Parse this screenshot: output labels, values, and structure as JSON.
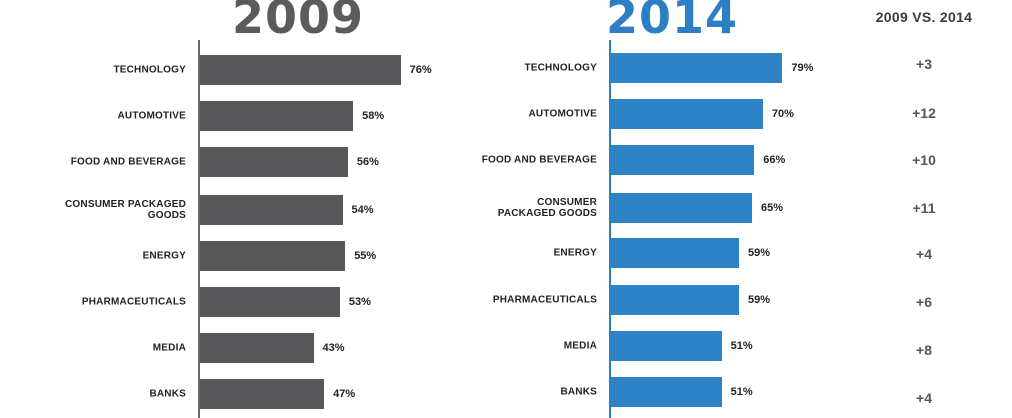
{
  "chart_data": {
    "type": "bar",
    "orientation": "horizontal",
    "categories": [
      "TECHNOLOGY",
      "AUTOMOTIVE",
      "FOOD AND BEVERAGE",
      "CONSUMER PACKAGED GOODS",
      "ENERGY",
      "PHARMACEUTICALS",
      "MEDIA",
      "BANKS"
    ],
    "series": [
      {
        "name": "2009",
        "color": "#58585a",
        "values": [
          76,
          58,
          56,
          54,
          55,
          53,
          43,
          47
        ],
        "labels": [
          "76%",
          "58%",
          "56%",
          "54%",
          "55%",
          "53%",
          "43%",
          "47%"
        ],
        "category_labels": [
          "TECHNOLOGY",
          "AUTOMOTIVE",
          "FOOD AND BEVERAGE",
          "CONSUMER PACKAGED\nGOODS",
          "ENERGY",
          "PHARMACEUTICALS",
          "MEDIA",
          "BANKS"
        ]
      },
      {
        "name": "2014",
        "color": "#2e82c6",
        "values": [
          79,
          70,
          66,
          65,
          59,
          59,
          51,
          51
        ],
        "labels": [
          "79%",
          "70%",
          "66%",
          "65%",
          "59%",
          "59%",
          "51%",
          "51%"
        ],
        "category_labels": [
          "TECHNOLOGY",
          "AUTOMOTIVE",
          "FOOD AND BEVERAGE",
          "CONSUMER\nPACKAGED GOODS",
          "ENERGY",
          "PHARMACEUTICALS",
          "MEDIA",
          "BANKS"
        ]
      }
    ],
    "comparison": {
      "title": "2009 VS. 2014",
      "values": [
        "+3",
        "+12",
        "+10",
        "+11",
        "+4",
        "+6",
        "+8",
        "+4"
      ]
    },
    "xlim": [
      0,
      100
    ],
    "title_2009_color": "#5b5b5b",
    "title_2014_color": "#2e7ec3"
  }
}
